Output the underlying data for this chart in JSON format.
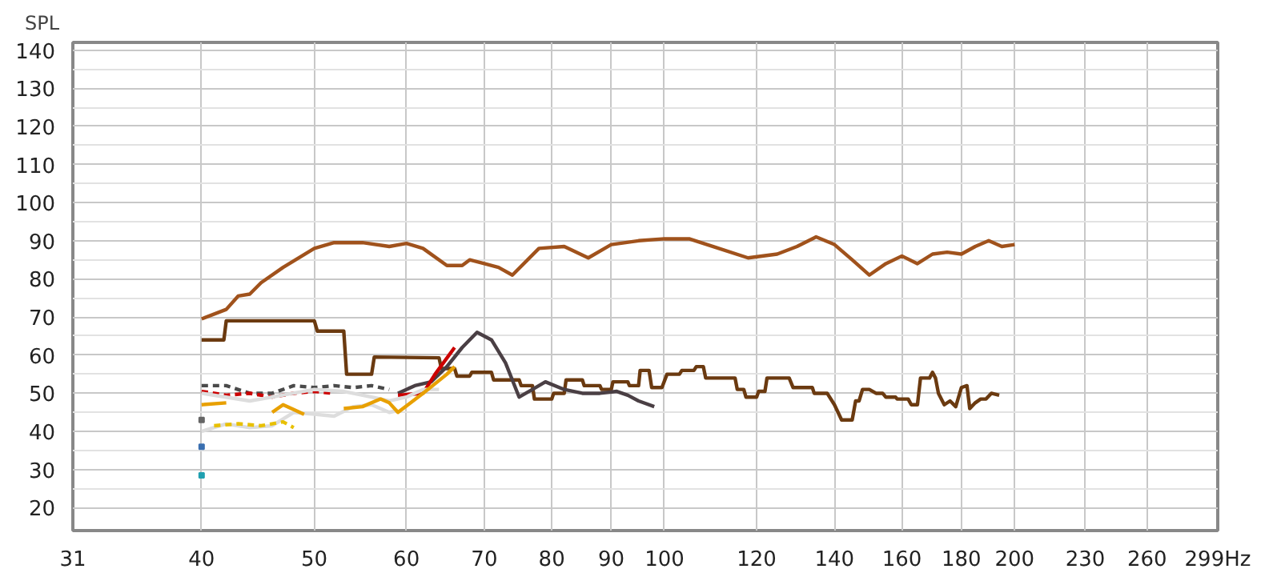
{
  "chart_data": {
    "type": "line",
    "ylabel": "SPL",
    "log": "x",
    "grid": true,
    "xlim": [
      31,
      299
    ],
    "xticks": [
      31,
      40,
      50,
      60,
      70,
      80,
      90,
      100,
      120,
      140,
      160,
      180,
      200,
      230,
      260,
      {
        "value": 299,
        "label": "299Hz"
      }
    ],
    "ylim": [
      14,
      142
    ],
    "yticks": [
      20,
      30,
      40,
      50,
      60,
      70,
      80,
      90,
      100,
      110,
      120,
      130,
      140
    ],
    "series": [
      {
        "color": "#a0521c",
        "line_style": "solid",
        "x": [
          40,
          42,
          43,
          44,
          45,
          47,
          50,
          52,
          55,
          58,
          60,
          62,
          65,
          67,
          68,
          70,
          72,
          74,
          78,
          82,
          86,
          90,
          95,
          100,
          105,
          110,
          118,
          125,
          130,
          135,
          140,
          145,
          150,
          155,
          160,
          165,
          170,
          175,
          180,
          185,
          190,
          195,
          200
        ],
        "values": [
          69.5,
          72,
          75.5,
          76,
          79,
          83,
          88,
          89.5,
          89.5,
          88.5,
          89.3,
          88,
          83.5,
          83.5,
          85,
          84,
          83,
          81,
          88,
          88.5,
          85.5,
          89,
          90,
          90.5,
          90.5,
          88.5,
          85.5,
          86.5,
          88.5,
          91,
          89,
          85,
          81,
          84,
          86,
          84,
          86.5,
          87,
          86.5,
          88.5,
          90,
          88.5,
          89
        ]
      },
      {
        "color": "#6b3a10",
        "line_style": "solid",
        "x": [
          40,
          41.8,
          42,
          50,
          50.3,
          53,
          53.3,
          56,
          56.3,
          64,
          64.3,
          66,
          66.3,
          68,
          68.3,
          71,
          71.3,
          75,
          75.3,
          77,
          77.3,
          80,
          80.3,
          82,
          82.3,
          85,
          85.3,
          88,
          88.3,
          90,
          90.3,
          93,
          93.3,
          95,
          95.3,
          97,
          97.5,
          99.5,
          100.5,
          103,
          103.5,
          106,
          106.5,
          108,
          108.5,
          115,
          115.5,
          117,
          117.5,
          120,
          120.5,
          122,
          122.5,
          128,
          129,
          134,
          134.5,
          138,
          140,
          142,
          145,
          146,
          147,
          148,
          150,
          152,
          154,
          155,
          158,
          158.5,
          162,
          163,
          165,
          166,
          169,
          170,
          171,
          172,
          174,
          176,
          178,
          180,
          182,
          183,
          185,
          187,
          189,
          191,
          194
        ],
        "values": [
          64,
          64,
          69,
          69,
          66.3,
          66.3,
          55,
          55,
          59.5,
          59.3,
          56.5,
          56.5,
          54.5,
          54.5,
          55.5,
          55.5,
          53.5,
          53.5,
          52,
          52,
          48.5,
          48.5,
          50,
          50,
          53.5,
          53.5,
          52,
          52,
          51,
          51,
          53,
          53,
          52,
          52,
          56,
          56,
          51.5,
          51.5,
          55,
          55,
          56,
          56,
          57,
          57,
          54,
          54,
          51,
          51,
          49,
          49,
          50.5,
          50.5,
          54,
          54,
          51.5,
          51.5,
          50,
          50,
          47,
          43,
          43,
          48,
          48,
          51,
          51,
          50,
          50,
          49,
          49,
          48.5,
          48.5,
          47,
          47,
          54,
          54,
          55.5,
          54,
          50,
          47,
          48,
          46.5,
          51.5,
          52,
          46,
          47.5,
          48.5,
          48.5,
          50,
          49.5
        ]
      },
      {
        "color": "#4a3f44",
        "line_style": "solid",
        "x": [
          59,
          61,
          63,
          65,
          67,
          69,
          71,
          73,
          75,
          77,
          79,
          82,
          85,
          88,
          91,
          93,
          95,
          98
        ],
        "values": [
          50,
          52,
          53,
          57,
          62,
          66,
          64,
          58,
          49,
          51,
          53,
          51,
          50,
          50,
          50.5,
          49.5,
          48,
          46.5
        ]
      },
      {
        "color": "#4a4a4a",
        "line_style": "dashed",
        "x": [
          40,
          42,
          44,
          46,
          48,
          50,
          52,
          54,
          56,
          58
        ],
        "values": [
          52,
          52,
          50,
          50,
          52,
          51.5,
          52,
          51.5,
          52,
          51
        ]
      },
      {
        "color": "#cc0000",
        "line_style": "dashed",
        "x": [
          40,
          42,
          44,
          46,
          48,
          50,
          52
        ],
        "values": [
          50.5,
          49.5,
          50,
          49,
          50,
          50.5,
          50
        ]
      },
      {
        "color": "#cc0000",
        "line_style": "solid",
        "x": [
          59,
          62,
          63.5,
          66
        ],
        "values": [
          49.5,
          50,
          55,
          62
        ]
      },
      {
        "color": "#dddddd",
        "line_style": "solid",
        "x": [
          40,
          44,
          46,
          50,
          53,
          56,
          58,
          60,
          62,
          64
        ],
        "values": [
          50,
          48,
          49,
          51,
          50.5,
          49,
          48,
          49,
          51,
          51
        ]
      },
      {
        "color": "#dddddd",
        "line_style": "solid",
        "x": [
          40,
          42,
          44,
          46,
          48,
          50,
          52,
          54,
          56,
          58,
          59
        ],
        "values": [
          40,
          42,
          41,
          41.5,
          45,
          44.5,
          44,
          46.5,
          47,
          45,
          45.5
        ]
      },
      {
        "color": "#e8a000",
        "line_style": "solid",
        "x": [
          40,
          42,
          44,
          46,
          47,
          49,
          51,
          53,
          55,
          57,
          58,
          59,
          62,
          65,
          66
        ],
        "values": [
          47,
          47.5,
          null,
          45,
          47,
          44.5,
          null,
          46,
          46.5,
          48.5,
          47.5,
          45,
          50,
          55,
          57
        ]
      },
      {
        "color": "#e8c000",
        "line_style": "dashed",
        "x": [
          41,
          43,
          45,
          47,
          48
        ],
        "values": [
          41.5,
          42,
          41.5,
          42.5,
          41
        ]
      },
      {
        "type": "scatter",
        "marker": "square",
        "colors": [
          "#666666",
          "#3a6fb0",
          "#20a0b0"
        ],
        "x": [
          40,
          40,
          40
        ],
        "values": [
          43,
          36,
          28.5
        ]
      }
    ]
  }
}
